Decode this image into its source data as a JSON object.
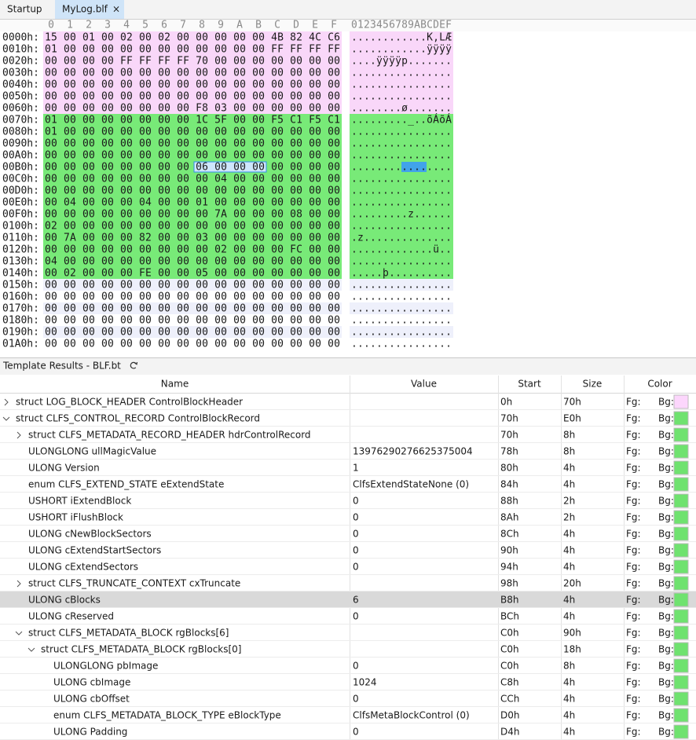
{
  "tabs": [
    {
      "label": "Startup"
    },
    {
      "label": "MyLog.blf",
      "active": true,
      "close": "×"
    }
  ],
  "hex_view": {
    "hex_columns": [
      "0",
      "1",
      "2",
      "3",
      "4",
      "5",
      "6",
      "7",
      "8",
      "9",
      "A",
      "B",
      "C",
      "D",
      "E",
      "F"
    ],
    "ascii_header": "0123456789ABCDEF",
    "stripe_color": "#eef0fb",
    "rows": [
      {
        "offset": "0000h:",
        "hex": "15 00 01 00 02 00 02 00 00 00 00 00 4B 82 4C C6",
        "ascii": "............K‚LÆ",
        "color": "#f9d7f9"
      },
      {
        "offset": "0010h:",
        "hex": "01 00 00 00 00 00 00 00 00 00 00 00 FF FF FF FF",
        "ascii": "............ÿÿÿÿ",
        "color": "#f9d7f9"
      },
      {
        "offset": "0020h:",
        "hex": "00 00 00 00 FF FF FF FF 70 00 00 00 00 00 00 00",
        "ascii": "....ÿÿÿÿp.......",
        "color": "#f9d7f9"
      },
      {
        "offset": "0030h:",
        "hex": "00 00 00 00 00 00 00 00 00 00 00 00 00 00 00 00",
        "ascii": "................",
        "color": "#f9d7f9"
      },
      {
        "offset": "0040h:",
        "hex": "00 00 00 00 00 00 00 00 00 00 00 00 00 00 00 00",
        "ascii": "................",
        "color": "#f9d7f9"
      },
      {
        "offset": "0050h:",
        "hex": "00 00 00 00 00 00 00 00 00 00 00 00 00 00 00 00",
        "ascii": "................",
        "color": "#f9d7f9"
      },
      {
        "offset": "0060h:",
        "hex": "00 00 00 00 00 00 00 00 F8 03 00 00 00 00 00 00",
        "ascii": "........ø.......",
        "color": "#f9d7f9"
      },
      {
        "offset": "0070h:",
        "hex": "01 00 00 00 00 00 00 00 1C 5F 00 00 F5 C1 F5 C1",
        "ascii": "........._..õÁõÁ",
        "color": "#78ea78"
      },
      {
        "offset": "0080h:",
        "hex": "01 00 00 00 00 00 00 00 00 00 00 00 00 00 00 00",
        "ascii": "................",
        "color": "#78ea78"
      },
      {
        "offset": "0090h:",
        "hex": "00 00 00 00 00 00 00 00 00 00 00 00 00 00 00 00",
        "ascii": "................",
        "color": "#78ea78"
      },
      {
        "offset": "00A0h:",
        "hex": "00 00 00 00 00 00 00 00 00 00 00 00 00 00 00 00",
        "ascii": "................",
        "color": "#78ea78"
      },
      {
        "offset": "00B0h:",
        "hex": "00 00 00 00 00 00 00 00 06 00 00 00 00 00 00 00",
        "ascii": "................",
        "color": "#78ea78"
      },
      {
        "offset": "00C0h:",
        "hex": "00 00 00 00 00 00 00 00 00 04 00 00 00 00 00 00",
        "ascii": "................",
        "color": "#78ea78"
      },
      {
        "offset": "00D0h:",
        "hex": "00 00 00 00 00 00 00 00 00 00 00 00 00 00 00 00",
        "ascii": "................",
        "color": "#78ea78"
      },
      {
        "offset": "00E0h:",
        "hex": "00 04 00 00 00 04 00 00 01 00 00 00 00 00 00 00",
        "ascii": "................",
        "color": "#78ea78"
      },
      {
        "offset": "00F0h:",
        "hex": "00 00 00 00 00 00 00 00 00 7A 00 00 00 08 00 00",
        "ascii": ".........z......",
        "color": "#78ea78"
      },
      {
        "offset": "0100h:",
        "hex": "02 00 00 00 00 00 00 00 00 00 00 00 00 00 00 00",
        "ascii": "................",
        "color": "#78ea78"
      },
      {
        "offset": "0110h:",
        "hex": "00 7A 00 00 00 82 00 00 03 00 00 00 00 00 00 00",
        "ascii": ".z..............",
        "color": "#78ea78"
      },
      {
        "offset": "0120h:",
        "hex": "00 00 00 00 00 00 00 00 00 02 00 00 00 FC 00 00",
        "ascii": ".............ü..",
        "color": "#78ea78"
      },
      {
        "offset": "0130h:",
        "hex": "04 00 00 00 00 00 00 00 00 00 00 00 00 00 00 00",
        "ascii": "................",
        "color": "#78ea78"
      },
      {
        "offset": "0140h:",
        "hex": "00 02 00 00 00 FE 00 00 05 00 00 00 00 00 00 00",
        "ascii": ".....þ..........",
        "color": "#78ea78"
      },
      {
        "offset": "0150h:",
        "hex": "00 00 00 00 00 00 00 00 00 00 00 00 00 00 00 00",
        "ascii": "................"
      },
      {
        "offset": "0160h:",
        "hex": "00 00 00 00 00 00 00 00 00 00 00 00 00 00 00 00",
        "ascii": "................"
      },
      {
        "offset": "0170h:",
        "hex": "00 00 00 00 00 00 00 00 00 00 00 00 00 00 00 00",
        "ascii": "................"
      },
      {
        "offset": "0180h:",
        "hex": "00 00 00 00 00 00 00 00 00 00 00 00 00 00 00 00",
        "ascii": "................"
      },
      {
        "offset": "0190h:",
        "hex": "00 00 00 00 00 00 00 00 00 00 00 00 00 00 00 00",
        "ascii": "................"
      },
      {
        "offset": "01A0h:",
        "hex": "00 00 00 00 00 00 00 00 00 00 00 00 00 00 00 00",
        "ascii": "................"
      }
    ]
  },
  "template": {
    "title": "Template Results - BLF.bt",
    "columns": [
      "Name",
      "Value",
      "Start",
      "Size",
      "Color"
    ],
    "fg_label": "Fg:",
    "bg_label": "Bg:",
    "rows": [
      {
        "name": "struct LOG_BLOCK_HEADER ControlBlockHeader",
        "start": "0h",
        "size": "70h",
        "bg": "#fcd6fc",
        "level": 0,
        "expanded": false
      },
      {
        "name": "struct CLFS_CONTROL_RECORD ControlBlockRecord",
        "start": "70h",
        "size": "E0h",
        "bg": "#6fe26f",
        "level": 0,
        "expanded": true
      },
      {
        "name": "struct CLFS_METADATA_RECORD_HEADER hdrControlRecord",
        "start": "70h",
        "size": "8h",
        "bg": "#6fe26f",
        "level": 1,
        "expanded": false
      },
      {
        "name": "ULONGLONG ullMagicValue",
        "value": "13976290276625375004",
        "start": "78h",
        "size": "8h",
        "bg": "#6fe26f",
        "level": 1
      },
      {
        "name": "ULONG Version",
        "value": "1",
        "start": "80h",
        "size": "4h",
        "bg": "#6fe26f",
        "level": 1
      },
      {
        "name": "enum CLFS_EXTEND_STATE eExtendState",
        "value": "ClfsExtendStateNone (0)",
        "start": "84h",
        "size": "4h",
        "bg": "#6fe26f",
        "level": 1
      },
      {
        "name": "USHORT iExtendBlock",
        "value": "0",
        "start": "88h",
        "size": "2h",
        "bg": "#6fe26f",
        "level": 1
      },
      {
        "name": "USHORT iFlushBlock",
        "value": "0",
        "start": "8Ah",
        "size": "2h",
        "bg": "#6fe26f",
        "level": 1
      },
      {
        "name": "ULONG cNewBlockSectors",
        "value": "0",
        "start": "8Ch",
        "size": "4h",
        "bg": "#6fe26f",
        "level": 1
      },
      {
        "name": "ULONG cExtendStartSectors",
        "value": "0",
        "start": "90h",
        "size": "4h",
        "bg": "#6fe26f",
        "level": 1
      },
      {
        "name": "ULONG cExtendSectors",
        "value": "0",
        "start": "94h",
        "size": "4h",
        "bg": "#6fe26f",
        "level": 1
      },
      {
        "name": "struct CLFS_TRUNCATE_CONTEXT cxTruncate",
        "start": "98h",
        "size": "20h",
        "bg": "#6fe26f",
        "level": 1,
        "expanded": false
      },
      {
        "name": "ULONG cBlocks",
        "value": "6",
        "start": "B8h",
        "size": "4h",
        "bg": "#6fe26f",
        "level": 1,
        "selected": true
      },
      {
        "name": "ULONG cReserved",
        "value": "0",
        "start": "BCh",
        "size": "4h",
        "bg": "#6fe26f",
        "level": 1
      },
      {
        "name": "struct CLFS_METADATA_BLOCK rgBlocks[6]",
        "start": "C0h",
        "size": "90h",
        "bg": "#6fe26f",
        "level": 1,
        "expanded": true
      },
      {
        "name": "struct CLFS_METADATA_BLOCK rgBlocks[0]",
        "start": "C0h",
        "size": "18h",
        "bg": "#6fe26f",
        "level": 2,
        "expanded": true
      },
      {
        "name": "ULONGLONG pbImage",
        "value": "0",
        "start": "C0h",
        "size": "8h",
        "bg": "#6fe26f",
        "level": 3
      },
      {
        "name": "ULONG cbImage",
        "value": "1024",
        "start": "C8h",
        "size": "4h",
        "bg": "#6fe26f",
        "level": 3
      },
      {
        "name": "ULONG cbOffset",
        "value": "0",
        "start": "CCh",
        "size": "4h",
        "bg": "#6fe26f",
        "level": 3
      },
      {
        "name": "enum CLFS_METADATA_BLOCK_TYPE eBlockType",
        "value": "ClfsMetaBlockControl (0)",
        "start": "D0h",
        "size": "4h",
        "bg": "#6fe26f",
        "level": 3
      },
      {
        "name": "ULONG Padding",
        "value": "0",
        "start": "D4h",
        "size": "4h",
        "bg": "#6fe26f",
        "level": 3
      }
    ]
  }
}
